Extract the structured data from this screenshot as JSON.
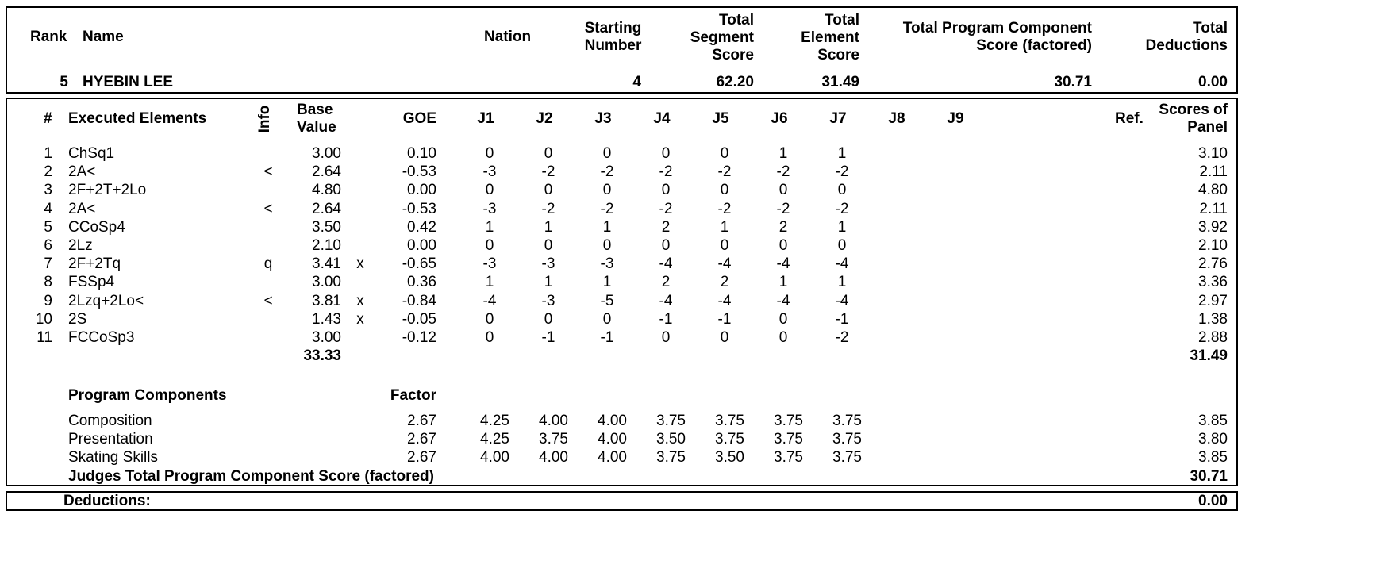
{
  "header": {
    "rank_label": "Rank",
    "name_label": "Name",
    "nation_label": "Nation",
    "starting_number_label": [
      "Starting",
      "Number"
    ],
    "tss_label": [
      "Total",
      "Segment",
      "Score"
    ],
    "tes_label": [
      "Total",
      "Element",
      "Score"
    ],
    "pcs_label": [
      "Total Program Component",
      "Score (factored)"
    ],
    "ded_label": [
      "Total",
      "Deductions"
    ]
  },
  "skater": {
    "rank": "5",
    "name": "HYEBIN LEE",
    "nation": "",
    "starting_number": "4",
    "tss": "62.20",
    "tes": "31.49",
    "pcs": "30.71",
    "deductions": "0.00"
  },
  "elements_header": {
    "num": "#",
    "executed": "Executed Elements",
    "info": "Info",
    "base_value": [
      "Base",
      "Value"
    ],
    "goe": "GOE",
    "judges": [
      "J1",
      "J2",
      "J3",
      "J4",
      "J5",
      "J6",
      "J7",
      "J8",
      "J9"
    ],
    "ref": "Ref.",
    "scores_of_panel": [
      "Scores of",
      "Panel"
    ]
  },
  "elements": [
    {
      "num": "1",
      "name": "ChSq1",
      "info": "",
      "base": "3.00",
      "x": "",
      "goe": "0.10",
      "j": [
        "0",
        "0",
        "0",
        "0",
        "0",
        "1",
        "1"
      ],
      "score": "3.10"
    },
    {
      "num": "2",
      "name": "2A<",
      "info": "<",
      "base": "2.64",
      "x": "",
      "goe": "-0.53",
      "j": [
        "-3",
        "-2",
        "-2",
        "-2",
        "-2",
        "-2",
        "-2"
      ],
      "score": "2.11"
    },
    {
      "num": "3",
      "name": "2F+2T+2Lo",
      "info": "",
      "base": "4.80",
      "x": "",
      "goe": "0.00",
      "j": [
        "0",
        "0",
        "0",
        "0",
        "0",
        "0",
        "0"
      ],
      "score": "4.80"
    },
    {
      "num": "4",
      "name": "2A<",
      "info": "<",
      "base": "2.64",
      "x": "",
      "goe": "-0.53",
      "j": [
        "-3",
        "-2",
        "-2",
        "-2",
        "-2",
        "-2",
        "-2"
      ],
      "score": "2.11"
    },
    {
      "num": "5",
      "name": "CCoSp4",
      "info": "",
      "base": "3.50",
      "x": "",
      "goe": "0.42",
      "j": [
        "1",
        "1",
        "1",
        "2",
        "1",
        "2",
        "1"
      ],
      "score": "3.92"
    },
    {
      "num": "6",
      "name": "2Lz",
      "info": "",
      "base": "2.10",
      "x": "",
      "goe": "0.00",
      "j": [
        "0",
        "0",
        "0",
        "0",
        "0",
        "0",
        "0"
      ],
      "score": "2.10"
    },
    {
      "num": "7",
      "name": "2F+2Tq",
      "info": "q",
      "base": "3.41",
      "x": "x",
      "goe": "-0.65",
      "j": [
        "-3",
        "-3",
        "-3",
        "-4",
        "-4",
        "-4",
        "-4"
      ],
      "score": "2.76"
    },
    {
      "num": "8",
      "name": "FSSp4",
      "info": "",
      "base": "3.00",
      "x": "",
      "goe": "0.36",
      "j": [
        "1",
        "1",
        "1",
        "2",
        "2",
        "1",
        "1"
      ],
      "score": "3.36"
    },
    {
      "num": "9",
      "name": "2Lzq+2Lo<",
      "info": "<",
      "base": "3.81",
      "x": "x",
      "goe": "-0.84",
      "j": [
        "-4",
        "-3",
        "-5",
        "-4",
        "-4",
        "-4",
        "-4"
      ],
      "score": "2.97"
    },
    {
      "num": "10",
      "name": "2S",
      "info": "",
      "base": "1.43",
      "x": "x",
      "goe": "-0.05",
      "j": [
        "0",
        "0",
        "0",
        "-1",
        "-1",
        "0",
        "-1"
      ],
      "score": "1.38"
    },
    {
      "num": "11",
      "name": "FCCoSp3",
      "info": "",
      "base": "3.00",
      "x": "",
      "goe": "-0.12",
      "j": [
        "0",
        "-1",
        "-1",
        "0",
        "0",
        "0",
        "-2"
      ],
      "score": "2.88"
    }
  ],
  "elements_total": {
    "base": "33.33",
    "score": "31.49"
  },
  "components_header": {
    "title": "Program Components",
    "factor": "Factor"
  },
  "components": [
    {
      "name": "Composition",
      "factor": "2.67",
      "j": [
        "4.25",
        "4.00",
        "4.00",
        "3.75",
        "3.75",
        "3.75",
        "3.75"
      ],
      "score": "3.85"
    },
    {
      "name": "Presentation",
      "factor": "2.67",
      "j": [
        "4.25",
        "3.75",
        "4.00",
        "3.50",
        "3.75",
        "3.75",
        "3.75"
      ],
      "score": "3.80"
    },
    {
      "name": "Skating Skills",
      "factor": "2.67",
      "j": [
        "4.00",
        "4.00",
        "4.00",
        "3.75",
        "3.50",
        "3.75",
        "3.75"
      ],
      "score": "3.85"
    }
  ],
  "components_total": {
    "label": "Judges Total Program Component Score (factored)",
    "score": "30.71"
  },
  "deductions": {
    "label": "Deductions:",
    "value": "0.00"
  }
}
